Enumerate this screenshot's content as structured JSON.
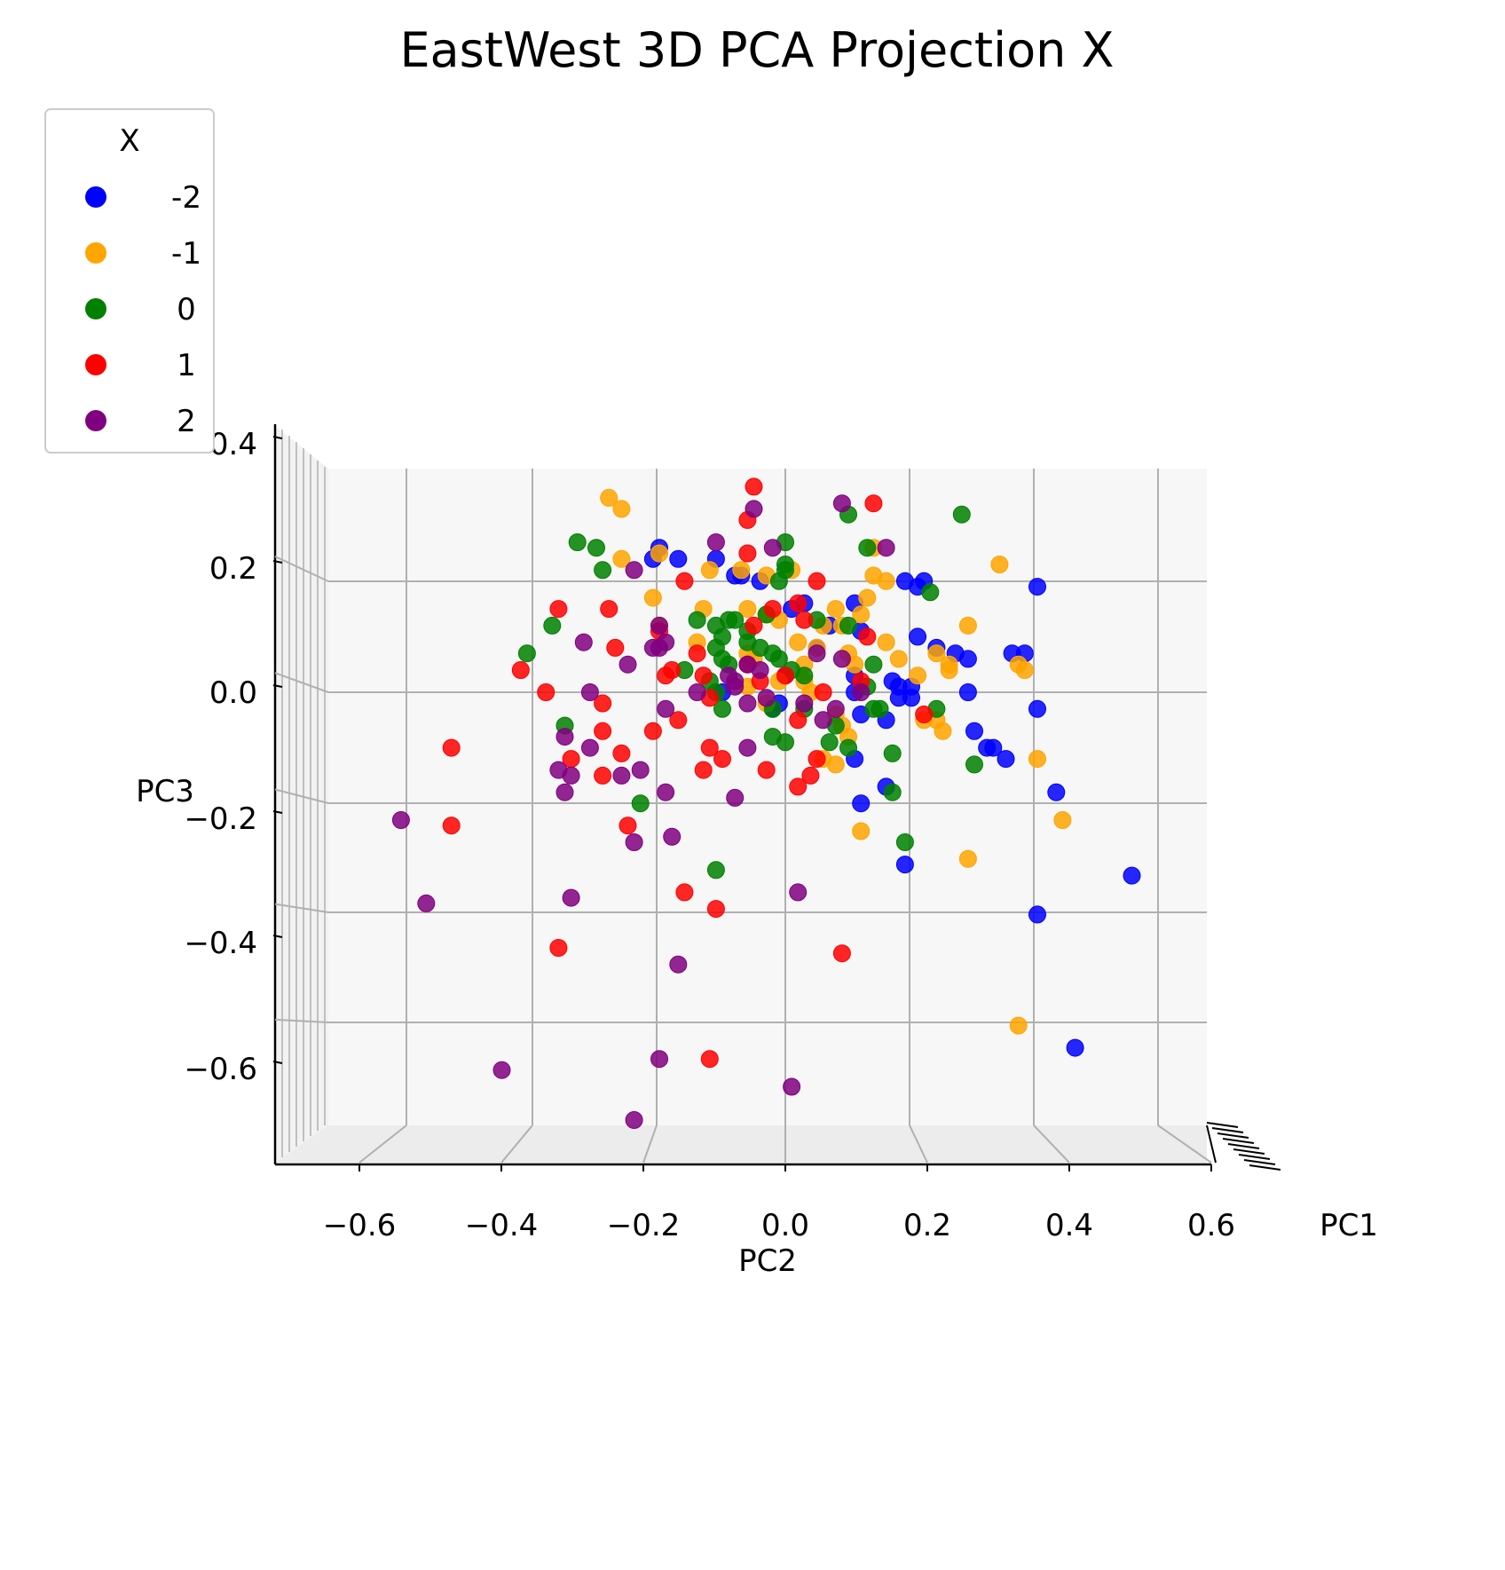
{
  "chart_data": {
    "type": "scatter",
    "projection": "3d",
    "title": "EastWest 3D PCA Projection X",
    "xlabel": "PC2",
    "ylabel": "PC3",
    "zlabel": "PC1",
    "x_ticks": [
      "−0.6",
      "−0.4",
      "−0.2",
      "0.0",
      "0.2",
      "0.4",
      "0.6"
    ],
    "y_ticks": [
      "0.4",
      "0.2",
      "0.0",
      "−0.2",
      "−0.4",
      "−0.6"
    ],
    "xlim": [
      -0.72,
      0.72
    ],
    "ylim": [
      -0.78,
      0.42
    ],
    "legend": {
      "title": "X",
      "position": "upper-left"
    },
    "series": [
      {
        "name": "-2",
        "color": "#0000ff",
        "points": [
          [
            -0.2,
            0.26
          ],
          [
            -0.21,
            0.24
          ],
          [
            -0.17,
            0.24
          ],
          [
            -0.11,
            0.24
          ],
          [
            -0.08,
            0.21
          ],
          [
            -0.07,
            0.21
          ],
          [
            -0.04,
            0.2
          ],
          [
            0.03,
            0.16
          ],
          [
            0.01,
            0.15
          ],
          [
            0.11,
            0.16
          ],
          [
            0.07,
            0.12
          ],
          [
            0.12,
            0.11
          ],
          [
            0.19,
            0.2
          ],
          [
            0.22,
            0.2
          ],
          [
            0.21,
            0.19
          ],
          [
            0.4,
            0.19
          ],
          [
            0.21,
            0.1
          ],
          [
            0.24,
            0.08
          ],
          [
            0.27,
            0.07
          ],
          [
            0.29,
            0.06
          ],
          [
            0.36,
            0.07
          ],
          [
            0.38,
            0.07
          ],
          [
            0.11,
            0.03
          ],
          [
            0.11,
            0.0
          ],
          [
            0.17,
            0.02
          ],
          [
            0.18,
            0.01
          ],
          [
            0.2,
            0.01
          ],
          [
            0.18,
            -0.01
          ],
          [
            0.2,
            -0.01
          ],
          [
            0.29,
            0.0
          ],
          [
            0.4,
            -0.03
          ],
          [
            0.16,
            -0.05
          ],
          [
            0.12,
            -0.04
          ],
          [
            -0.1,
            0.0
          ],
          [
            0.0,
            0.03
          ],
          [
            -0.01,
            -0.02
          ],
          [
            -0.02,
            -0.03
          ],
          [
            0.3,
            -0.07
          ],
          [
            0.32,
            -0.1
          ],
          [
            0.33,
            -0.1
          ],
          [
            0.35,
            -0.12
          ],
          [
            0.11,
            -0.12
          ],
          [
            0.16,
            -0.17
          ],
          [
            0.12,
            -0.2
          ],
          [
            0.19,
            -0.31
          ],
          [
            0.43,
            -0.18
          ],
          [
            0.55,
            -0.33
          ],
          [
            0.4,
            -0.4
          ],
          [
            0.46,
            -0.64
          ],
          [
            0.05,
            0.08
          ]
        ]
      },
      {
        "name": "-1",
        "color": "#ffa500",
        "points": [
          [
            -0.28,
            0.35
          ],
          [
            -0.26,
            0.33
          ],
          [
            -0.26,
            0.24
          ],
          [
            -0.2,
            0.25
          ],
          [
            -0.12,
            0.22
          ],
          [
            -0.07,
            0.22
          ],
          [
            0.01,
            0.22
          ],
          [
            -0.03,
            0.21
          ],
          [
            0.14,
            0.26
          ],
          [
            0.14,
            0.21
          ],
          [
            0.16,
            0.2
          ],
          [
            0.13,
            0.17
          ],
          [
            0.34,
            0.23
          ],
          [
            0.12,
            0.14
          ],
          [
            -0.21,
            0.17
          ],
          [
            -0.2,
            0.12
          ],
          [
            -0.14,
            0.09
          ],
          [
            -0.13,
            0.15
          ],
          [
            -0.06,
            0.15
          ],
          [
            -0.03,
            0.14
          ],
          [
            -0.01,
            0.13
          ],
          [
            0.06,
            0.12
          ],
          [
            0.08,
            0.15
          ],
          [
            0.09,
            0.12
          ],
          [
            0.16,
            0.09
          ],
          [
            0.18,
            0.06
          ],
          [
            0.21,
            0.03
          ],
          [
            0.24,
            0.07
          ],
          [
            0.26,
            0.05
          ],
          [
            0.26,
            0.04
          ],
          [
            0.37,
            0.05
          ],
          [
            0.38,
            0.04
          ],
          [
            0.29,
            0.12
          ],
          [
            -0.06,
            0.07
          ],
          [
            -0.05,
            0.06
          ],
          [
            0.02,
            0.09
          ],
          [
            0.03,
            0.05
          ],
          [
            0.05,
            0.08
          ],
          [
            0.1,
            0.07
          ],
          [
            0.11,
            0.05
          ],
          [
            0.03,
            0.02
          ],
          [
            -0.03,
            -0.02
          ],
          [
            -0.06,
            0.01
          ],
          [
            -0.01,
            0.02
          ],
          [
            0.04,
            0.0
          ],
          [
            0.08,
            -0.04
          ],
          [
            0.09,
            -0.06
          ],
          [
            0.1,
            -0.08
          ],
          [
            0.22,
            -0.05
          ],
          [
            0.24,
            -0.05
          ],
          [
            0.25,
            -0.07
          ],
          [
            0.4,
            -0.12
          ],
          [
            0.44,
            -0.23
          ],
          [
            0.12,
            -0.25
          ],
          [
            0.29,
            -0.3
          ],
          [
            0.37,
            -0.6
          ],
          [
            0.08,
            -0.13
          ],
          [
            0.06,
            -0.12
          ]
        ]
      },
      {
        "name": "0",
        "color": "#008000",
        "points": [
          [
            -0.33,
            0.27
          ],
          [
            -0.3,
            0.26
          ],
          [
            -0.29,
            0.22
          ],
          [
            -0.37,
            0.12
          ],
          [
            -0.41,
            0.07
          ],
          [
            -0.35,
            -0.06
          ],
          [
            -0.23,
            -0.2
          ],
          [
            -0.14,
            0.13
          ],
          [
            -0.11,
            0.12
          ],
          [
            -0.1,
            0.1
          ],
          [
            -0.09,
            0.13
          ],
          [
            -0.08,
            0.13
          ],
          [
            -0.06,
            0.11
          ],
          [
            -0.03,
            0.14
          ],
          [
            0.0,
            0.22
          ],
          [
            0.0,
            0.23
          ],
          [
            -0.01,
            0.2
          ],
          [
            0.1,
            0.32
          ],
          [
            0.13,
            0.26
          ],
          [
            0.0,
            0.27
          ],
          [
            0.28,
            0.32
          ],
          [
            0.23,
            0.18
          ],
          [
            -0.11,
            0.08
          ],
          [
            -0.1,
            0.06
          ],
          [
            -0.09,
            0.05
          ],
          [
            -0.06,
            0.09
          ],
          [
            -0.04,
            0.08
          ],
          [
            -0.02,
            0.07
          ],
          [
            -0.01,
            0.06
          ],
          [
            0.01,
            0.04
          ],
          [
            0.03,
            0.03
          ],
          [
            0.13,
            0.01
          ],
          [
            0.14,
            -0.03
          ],
          [
            -0.16,
            0.04
          ],
          [
            -0.12,
            0.02
          ],
          [
            -0.11,
            0.0
          ],
          [
            -0.1,
            -0.03
          ],
          [
            -0.02,
            -0.03
          ],
          [
            0.03,
            -0.03
          ],
          [
            0.15,
            -0.03
          ],
          [
            0.08,
            -0.06
          ],
          [
            0.07,
            -0.09
          ],
          [
            0.1,
            -0.1
          ],
          [
            -0.02,
            -0.08
          ],
          [
            0.0,
            -0.09
          ],
          [
            0.17,
            -0.11
          ],
          [
            0.24,
            -0.03
          ],
          [
            0.3,
            -0.13
          ],
          [
            0.17,
            -0.18
          ],
          [
            0.19,
            -0.27
          ],
          [
            -0.11,
            -0.32
          ],
          [
            0.1,
            0.12
          ],
          [
            0.05,
            0.13
          ],
          [
            0.14,
            0.05
          ]
        ]
      },
      {
        "name": "1",
        "color": "#ff0000",
        "points": [
          [
            -0.05,
            0.37
          ],
          [
            -0.06,
            0.31
          ],
          [
            0.14,
            0.34
          ],
          [
            -0.06,
            0.25
          ],
          [
            -0.16,
            0.2
          ],
          [
            0.05,
            0.2
          ],
          [
            -0.36,
            0.15
          ],
          [
            -0.28,
            0.15
          ],
          [
            -0.27,
            0.08
          ],
          [
            -0.2,
            0.11
          ],
          [
            -0.14,
            0.07
          ],
          [
            -0.02,
            0.15
          ],
          [
            0.02,
            0.16
          ],
          [
            -0.05,
            0.12
          ],
          [
            0.03,
            0.13
          ],
          [
            0.13,
            0.1
          ],
          [
            -0.42,
            0.04
          ],
          [
            -0.38,
            0.0
          ],
          [
            -0.19,
            0.03
          ],
          [
            -0.18,
            0.04
          ],
          [
            -0.13,
            0.03
          ],
          [
            -0.06,
            0.05
          ],
          [
            -0.04,
            0.02
          ],
          [
            0.0,
            0.03
          ],
          [
            0.06,
            0.0
          ],
          [
            0.02,
            -0.05
          ],
          [
            -0.12,
            -0.01
          ],
          [
            -0.29,
            -0.02
          ],
          [
            -0.29,
            -0.07
          ],
          [
            -0.21,
            -0.07
          ],
          [
            -0.17,
            -0.05
          ],
          [
            -0.12,
            -0.1
          ],
          [
            -0.1,
            -0.12
          ],
          [
            -0.34,
            -0.12
          ],
          [
            -0.26,
            -0.11
          ],
          [
            -0.29,
            -0.15
          ],
          [
            -0.13,
            -0.14
          ],
          [
            -0.03,
            -0.14
          ],
          [
            0.02,
            -0.17
          ],
          [
            0.04,
            -0.15
          ],
          [
            0.05,
            -0.12
          ],
          [
            -0.53,
            -0.1
          ],
          [
            -0.53,
            -0.24
          ],
          [
            -0.25,
            -0.24
          ],
          [
            -0.16,
            -0.36
          ],
          [
            -0.11,
            -0.39
          ],
          [
            -0.36,
            -0.46
          ],
          [
            0.09,
            -0.47
          ],
          [
            -0.12,
            -0.66
          ],
          [
            0.22,
            -0.04
          ],
          [
            0.12,
            0.02
          ]
        ]
      },
      {
        "name": "2",
        "color": "#800080",
        "points": [
          [
            -0.05,
            0.33
          ],
          [
            0.09,
            0.34
          ],
          [
            -0.11,
            0.27
          ],
          [
            -0.02,
            0.26
          ],
          [
            0.16,
            0.26
          ],
          [
            -0.24,
            0.22
          ],
          [
            -0.2,
            0.12
          ],
          [
            -0.32,
            0.09
          ],
          [
            -0.2,
            0.08
          ],
          [
            -0.19,
            0.09
          ],
          [
            -0.25,
            0.05
          ],
          [
            -0.31,
            0.0
          ],
          [
            -0.19,
            -0.03
          ],
          [
            -0.06,
            0.05
          ],
          [
            -0.04,
            0.04
          ],
          [
            -0.08,
            0.01
          ],
          [
            -0.03,
            -0.01
          ],
          [
            -0.09,
            0.03
          ],
          [
            -0.08,
            0.02
          ],
          [
            0.03,
            -0.02
          ],
          [
            -0.14,
            0.0
          ],
          [
            0.06,
            -0.05
          ],
          [
            -0.06,
            -0.02
          ],
          [
            0.09,
            0.06
          ],
          [
            0.12,
            0.0
          ],
          [
            0.08,
            -0.03
          ],
          [
            -0.35,
            -0.08
          ],
          [
            -0.31,
            -0.1
          ],
          [
            -0.36,
            -0.14
          ],
          [
            -0.34,
            -0.15
          ],
          [
            -0.26,
            -0.15
          ],
          [
            -0.23,
            -0.14
          ],
          [
            -0.35,
            -0.18
          ],
          [
            -0.06,
            -0.1
          ],
          [
            -0.19,
            -0.18
          ],
          [
            -0.08,
            -0.19
          ],
          [
            -0.18,
            -0.26
          ],
          [
            -0.24,
            -0.27
          ],
          [
            -0.61,
            -0.23
          ],
          [
            -0.57,
            -0.38
          ],
          [
            -0.34,
            -0.37
          ],
          [
            0.02,
            -0.36
          ],
          [
            -0.17,
            -0.49
          ],
          [
            -0.45,
            -0.68
          ],
          [
            -0.2,
            -0.66
          ],
          [
            0.01,
            -0.71
          ],
          [
            -0.24,
            -0.77
          ],
          [
            0.05,
            0.07
          ],
          [
            -0.21,
            0.08
          ]
        ]
      }
    ]
  }
}
